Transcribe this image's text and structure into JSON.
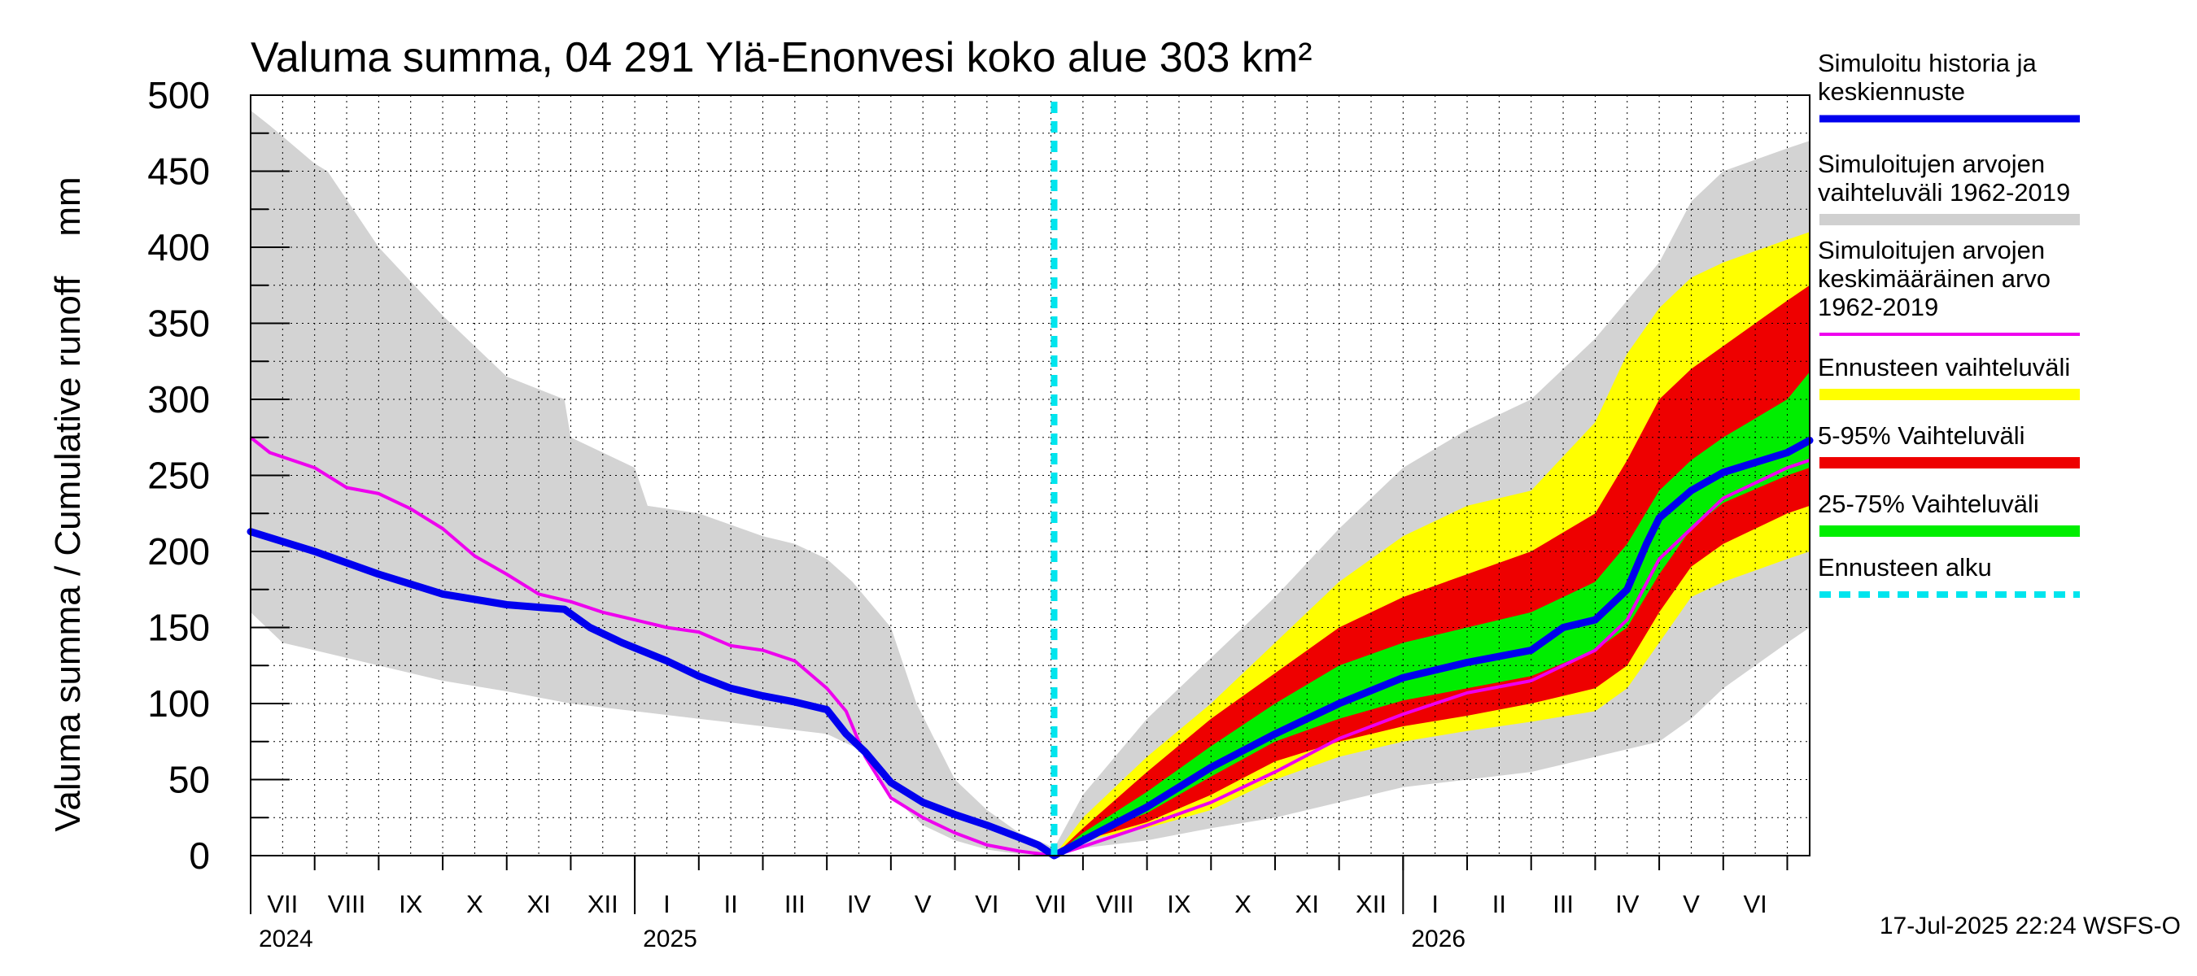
{
  "chart_data": {
    "type": "area",
    "title": "Valuma summa, 04 291 Ylä-Enonvesi koko alue 303 km²",
    "ylabel": "Valuma summa / Cumulative runoff    mm",
    "ylim": [
      0,
      500
    ],
    "yticks": [
      0,
      50,
      100,
      150,
      200,
      250,
      300,
      350,
      400,
      450,
      500
    ],
    "x_range_months": [
      0,
      24.35
    ],
    "forecast_start": 12.55,
    "month_labels": [
      "VII",
      "VIII",
      "IX",
      "X",
      "XI",
      "XII",
      "I",
      "II",
      "III",
      "IV",
      "V",
      "VI",
      "VII",
      "VIII",
      "IX",
      "X",
      "XI",
      "XII",
      "I",
      "II",
      "III",
      "IV",
      "V",
      "VI"
    ],
    "year_labels": [
      {
        "label": "2024",
        "month": 0
      },
      {
        "label": "2025",
        "month": 6
      },
      {
        "label": "2026",
        "month": 18
      }
    ],
    "timestamp": "17-Jul-2025 22:24 WSFS-O",
    "legend": [
      {
        "label": "Simuloitu historia ja\nkeskiennuste",
        "color": "#0000ee",
        "style": "solid"
      },
      {
        "label": "Simuloitujen arvojen\nvaihteluväli 1962-2019",
        "color": "#d0d0d0",
        "style": "solid"
      },
      {
        "label": "Simuloitujen arvojen\nkeskimääräinen arvo\n   1962-2019",
        "color": "#ee00ee",
        "style": "thin"
      },
      {
        "label": "Ennusteen vaihteluväli",
        "color": "#ffff00",
        "style": "solid"
      },
      {
        "label": "5-95% Vaihteluväli",
        "color": "#ee0000",
        "style": "solid"
      },
      {
        "label": "25-75% Vaihteluväli",
        "color": "#00ee00",
        "style": "solid"
      },
      {
        "label": "Ennusteen alku",
        "color": "#00e5ee",
        "style": "dotted"
      }
    ],
    "series": {
      "hist_range_upper": {
        "x": [
          0,
          0.3,
          1,
          1.2,
          2,
          3,
          4,
          4.9,
          5,
          6,
          6.2,
          7,
          8,
          8.5,
          9,
          9.4,
          10,
          10.4,
          11,
          11.5,
          12,
          12.4,
          12.55
        ],
        "y": [
          490,
          480,
          455,
          450,
          400,
          355,
          315,
          300,
          275,
          255,
          230,
          225,
          210,
          205,
          195,
          180,
          150,
          100,
          50,
          30,
          15,
          8,
          5
        ]
      },
      "hist_range_lower": {
        "x": [
          0,
          0.5,
          1,
          2,
          3,
          4,
          5,
          6,
          7,
          8,
          9,
          9.5,
          10,
          10.5,
          11,
          11.5,
          12,
          12.55
        ],
        "y": [
          160,
          140,
          135,
          125,
          115,
          108,
          100,
          95,
          90,
          85,
          80,
          70,
          40,
          20,
          10,
          4,
          1,
          0
        ]
      },
      "future_range_upper": {
        "x": [
          12.55,
          13,
          14,
          15,
          16,
          17,
          18,
          19,
          20,
          21,
          22,
          22.5,
          23,
          24,
          24.35
        ],
        "y": [
          5,
          40,
          90,
          130,
          170,
          215,
          255,
          280,
          300,
          340,
          390,
          430,
          450,
          465,
          470
        ]
      },
      "future_range_lower": {
        "x": [
          12.55,
          13,
          14,
          15,
          16,
          17,
          18,
          19,
          20,
          21,
          22,
          22.5,
          23,
          24,
          24.35
        ],
        "y": [
          0,
          5,
          10,
          18,
          25,
          35,
          45,
          50,
          55,
          65,
          75,
          90,
          110,
          140,
          150
        ]
      },
      "yellow_upper": {
        "x": [
          12.55,
          13,
          14,
          15,
          16,
          17,
          18,
          19,
          20,
          21,
          21.5,
          22,
          22.5,
          23,
          24,
          24.35
        ],
        "y": [
          0,
          25,
          65,
          100,
          140,
          180,
          210,
          230,
          240,
          285,
          330,
          360,
          380,
          390,
          405,
          410
        ]
      },
      "yellow_lower": {
        "x": [
          12.55,
          13,
          14,
          15,
          16,
          17,
          18,
          19,
          20,
          21,
          21.5,
          22,
          22.5,
          23,
          24,
          24.35
        ],
        "y": [
          0,
          10,
          18,
          30,
          50,
          65,
          75,
          82,
          88,
          95,
          110,
          140,
          170,
          180,
          195,
          200
        ]
      },
      "red_upper": {
        "x": [
          12.55,
          13,
          14,
          15,
          16,
          17,
          18,
          19,
          20,
          21,
          21.5,
          22,
          22.5,
          23,
          24,
          24.35
        ],
        "y": [
          0,
          18,
          55,
          90,
          120,
          150,
          170,
          185,
          200,
          225,
          260,
          300,
          320,
          335,
          365,
          375
        ]
      },
      "red_lower": {
        "x": [
          12.55,
          13,
          14,
          15,
          16,
          17,
          18,
          19,
          20,
          21,
          21.5,
          22,
          22.5,
          23,
          24,
          24.35
        ],
        "y": [
          0,
          10,
          22,
          40,
          62,
          75,
          85,
          92,
          100,
          110,
          125,
          160,
          190,
          205,
          225,
          230
        ]
      },
      "green_upper": {
        "x": [
          12.55,
          13,
          14,
          15,
          16,
          17,
          18,
          19,
          20,
          21,
          21.5,
          22,
          22.5,
          23,
          24,
          24.35
        ],
        "y": [
          0,
          15,
          42,
          72,
          100,
          125,
          140,
          150,
          160,
          180,
          205,
          240,
          260,
          275,
          300,
          318
        ]
      },
      "green_lower": {
        "x": [
          12.55,
          13,
          14,
          15,
          16,
          17,
          18,
          19,
          20,
          21,
          21.5,
          22,
          22.5,
          23,
          24,
          24.35
        ],
        "y": [
          0,
          12,
          28,
          52,
          75,
          90,
          102,
          110,
          118,
          135,
          150,
          185,
          215,
          232,
          250,
          255
        ]
      },
      "hist_mean": {
        "x": [
          0,
          0.3,
          1,
          1.5,
          2,
          2.5,
          3,
          3.5,
          4,
          4.5,
          5,
          5.5,
          6,
          6.5,
          7,
          7.5,
          8,
          8.5,
          9,
          9.3,
          9.6,
          10,
          10.5,
          11,
          11.5,
          12,
          12.55,
          13,
          14,
          15,
          16,
          17,
          18,
          19,
          20,
          21,
          21.5,
          22,
          22.5,
          23,
          24,
          24.35
        ],
        "y": [
          275,
          265,
          255,
          242,
          238,
          228,
          215,
          197,
          185,
          172,
          167,
          160,
          155,
          150,
          147,
          138,
          135,
          128,
          110,
          95,
          65,
          38,
          25,
          15,
          7,
          3,
          0,
          6,
          20,
          35,
          55,
          77,
          93,
          107,
          115,
          135,
          155,
          195,
          215,
          235,
          255,
          260
        ]
      },
      "main_forecast": {
        "x": [
          0,
          1,
          2,
          3,
          4,
          4.9,
          5.3,
          5.8,
          6.5,
          7,
          7.5,
          8,
          8.5,
          9,
          9.3,
          9.6,
          10,
          10.5,
          11,
          11.5,
          12,
          12.3,
          12.55,
          13,
          14,
          15,
          16,
          17,
          18,
          19,
          20,
          20.5,
          21,
          21.5,
          21.8,
          22,
          22.5,
          23,
          24,
          24.35
        ],
        "y": [
          213,
          200,
          185,
          172,
          165,
          162,
          150,
          140,
          128,
          118,
          110,
          105,
          101,
          96,
          80,
          68,
          48,
          35,
          27,
          20,
          12,
          7,
          0,
          10,
          32,
          58,
          80,
          100,
          117,
          127,
          135,
          150,
          155,
          175,
          205,
          222,
          240,
          252,
          265,
          273
        ]
      }
    }
  }
}
